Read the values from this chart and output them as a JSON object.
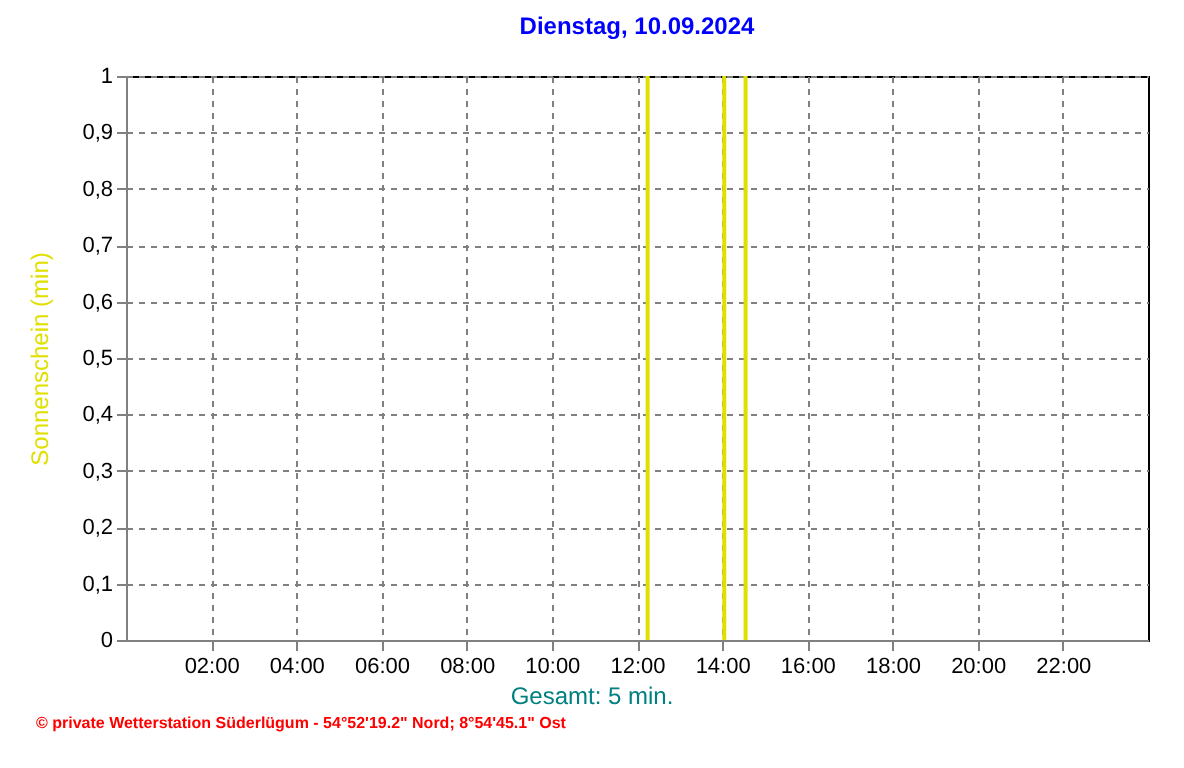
{
  "chart_data": {
    "type": "bar",
    "title": "Dienstag, 10.09.2024",
    "ylabel": "Sonnenschein  (min)",
    "x": [
      12.25,
      14.05,
      14.55
    ],
    "series": [
      {
        "color": "#e0e000",
        "values": [
          1,
          1,
          1
        ]
      }
    ],
    "xlim": [
      0,
      24
    ],
    "xticks": [
      {
        "value": 2,
        "label": "02:00"
      },
      {
        "value": 4,
        "label": "04:00"
      },
      {
        "value": 6,
        "label": "06:00"
      },
      {
        "value": 8,
        "label": "08:00"
      },
      {
        "value": 10,
        "label": "10:00"
      },
      {
        "value": 12,
        "label": "12:00"
      },
      {
        "value": 14,
        "label": "14:00"
      },
      {
        "value": 16,
        "label": "16:00"
      },
      {
        "value": 18,
        "label": "18:00"
      },
      {
        "value": 20,
        "label": "20:00"
      },
      {
        "value": 22,
        "label": "22:00"
      }
    ],
    "ylim": [
      0,
      1
    ],
    "yticks": [
      0,
      {
        "value": 0.1,
        "label": "0,1"
      },
      {
        "value": 0.2,
        "label": "0,2"
      },
      {
        "value": 0.3,
        "label": "0,3"
      },
      {
        "value": 0.4,
        "label": "0,4"
      },
      {
        "value": 0.5,
        "label": "0,5"
      },
      {
        "value": 0.6,
        "label": "0,6"
      },
      {
        "value": 0.7,
        "label": "0,7"
      },
      {
        "value": 0.8,
        "label": "0,8"
      },
      {
        "value": 0.9,
        "label": "0,9"
      },
      1
    ],
    "grid": true,
    "line_style": "dashed",
    "annotations": [
      "Gesamt: 5 min.",
      "© private Wetterstation Süderlügum - 54°52'19.2\" Nord; 8°54'45.1\" Ost"
    ]
  }
}
